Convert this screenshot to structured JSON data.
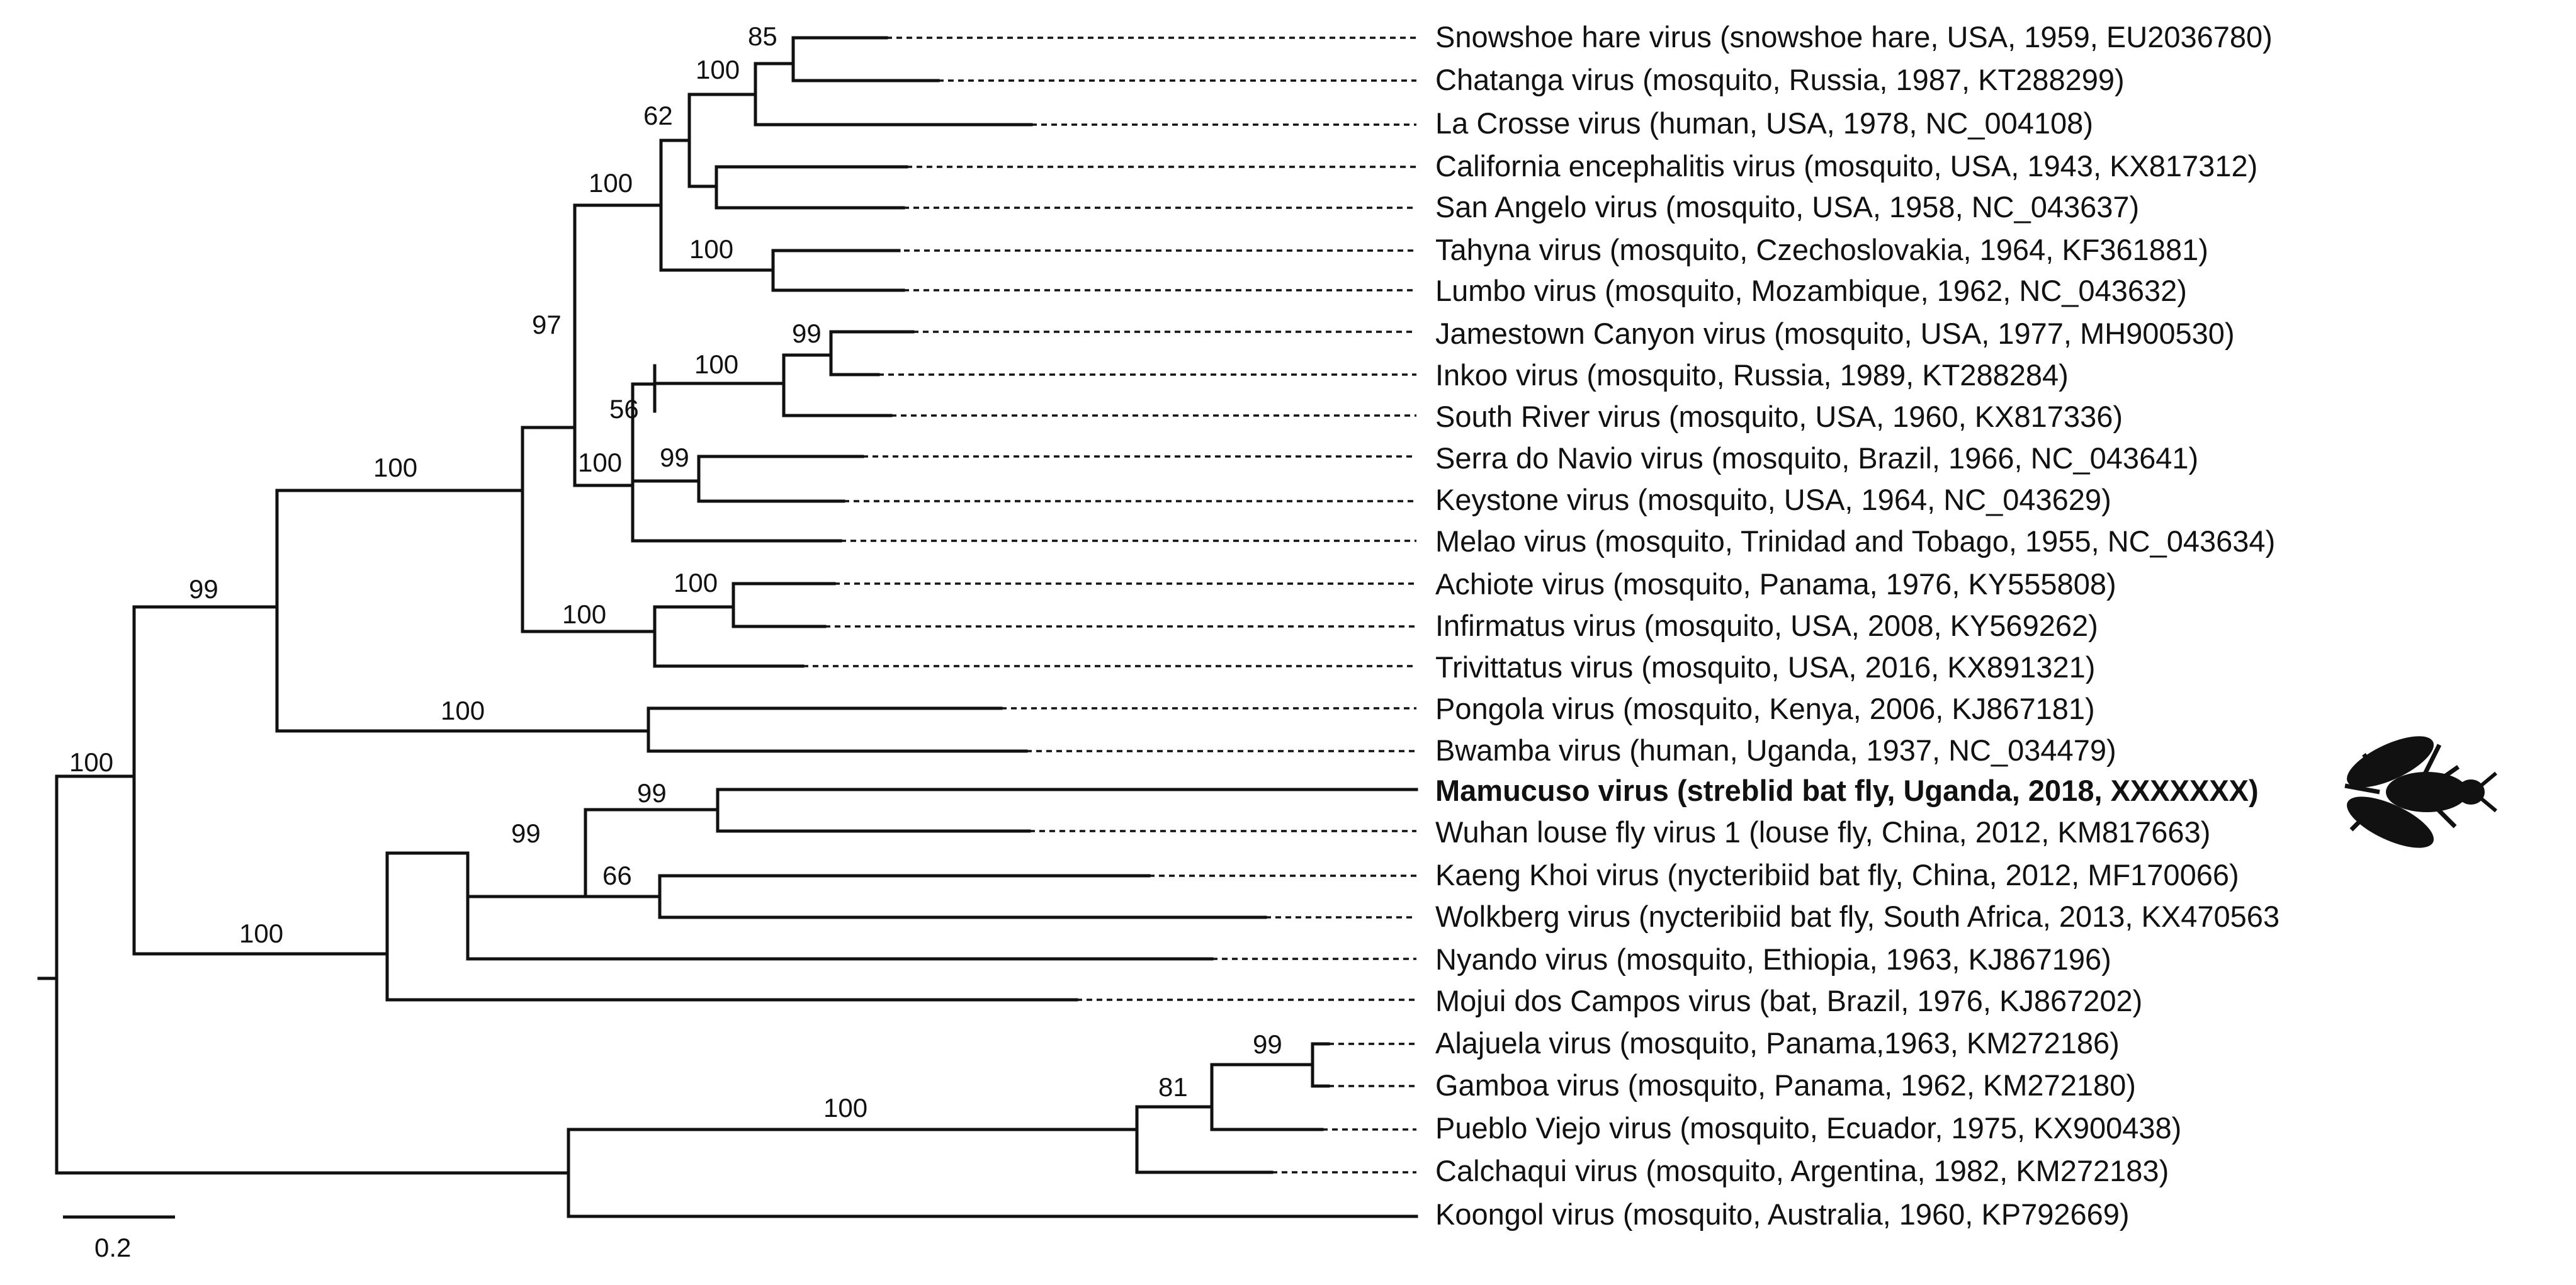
{
  "diagram": {
    "type": "phylogenetic-tree",
    "taxa": [
      {
        "label": "Snowshoe hare virus (snowshoe hare, USA, 1959, EU2036780)",
        "bold": false
      },
      {
        "label": "Chatanga virus (mosquito, Russia, 1987, KT288299)",
        "bold": false
      },
      {
        "label": "La Crosse virus (human, USA, 1978, NC_004108)",
        "bold": false
      },
      {
        "label": "California encephalitis virus (mosquito, USA, 1943, KX817312)",
        "bold": false
      },
      {
        "label": "San Angelo virus (mosquito, USA, 1958, NC_043637)",
        "bold": false
      },
      {
        "label": "Tahyna virus (mosquito, Czechoslovakia, 1964, KF361881)",
        "bold": false
      },
      {
        "label": "Lumbo virus (mosquito, Mozambique, 1962, NC_043632)",
        "bold": false
      },
      {
        "label": "Jamestown Canyon virus (mosquito, USA, 1977, MH900530)",
        "bold": false
      },
      {
        "label": "Inkoo virus (mosquito, Russia, 1989, KT288284)",
        "bold": false
      },
      {
        "label": "South River virus (mosquito, USA, 1960, KX817336)",
        "bold": false
      },
      {
        "label": "Serra do Navio virus  (mosquito, Brazil, 1966, NC_043641)",
        "bold": false
      },
      {
        "label": "Keystone virus (mosquito, USA, 1964, NC_043629)",
        "bold": false
      },
      {
        "label": "Melao virus  (mosquito, Trinidad and Tobago, 1955, NC_043634)",
        "bold": false
      },
      {
        "label": "Achiote virus (mosquito, Panama, 1976, KY555808)",
        "bold": false
      },
      {
        "label": "Infirmatus virus (mosquito, USA, 2008, KY569262)",
        "bold": false
      },
      {
        "label": "Trivittatus virus (mosquito, USA, 2016, KX891321)",
        "bold": false
      },
      {
        "label": "Pongola virus (mosquito, Kenya, 2006, KJ867181)",
        "bold": false
      },
      {
        "label": "Bwamba virus (human, Uganda, 1937, NC_034479)",
        "bold": false
      },
      {
        "label": "Mamucuso virus (streblid bat fly, Uganda, 2018, XXXXXXX)",
        "bold": true
      },
      {
        "label": "Wuhan louse fly virus 1 (louse fly, China, 2012, KM817663)",
        "bold": false
      },
      {
        "label": "Kaeng Khoi virus (nycteribiid bat fly, China, 2012, MF170066)",
        "bold": false
      },
      {
        "label": "Wolkberg virus (nycteribiid bat fly, South Africa, 2013, KX470563",
        "bold": false
      },
      {
        "label": "Nyando virus (mosquito, Ethiopia, 1963, KJ867196)",
        "bold": false
      },
      {
        "label": "Mojui dos Campos virus (bat, Brazil, 1976, KJ867202)",
        "bold": false
      },
      {
        "label": "Alajuela virus (mosquito, Panama,1963, KM272186)",
        "bold": false
      },
      {
        "label": "Gamboa virus (mosquito, Panama, 1962, KM272180)",
        "bold": false
      },
      {
        "label": "Pueblo Viejo virus (mosquito, Ecuador, 1975, KX900438)",
        "bold": false
      },
      {
        "label": "Calchaqui virus (mosquito, Argentina, 1982, KM272183)",
        "bold": false
      },
      {
        "label": "Koongol virus (mosquito, Australia, 1960, KP792669)",
        "bold": false
      }
    ],
    "bootstrap_values": [
      "85",
      "100",
      "62",
      "100",
      "100",
      "99",
      "100",
      "56",
      "100",
      "99",
      "97",
      "100",
      "100",
      "100",
      "99",
      "100",
      "99",
      "66",
      "99",
      "100",
      "99",
      "81",
      "100",
      "100"
    ],
    "scale_bar": {
      "label": "0.2",
      "value": 0.2
    },
    "highlight_icon": "bat-fly-icon"
  }
}
